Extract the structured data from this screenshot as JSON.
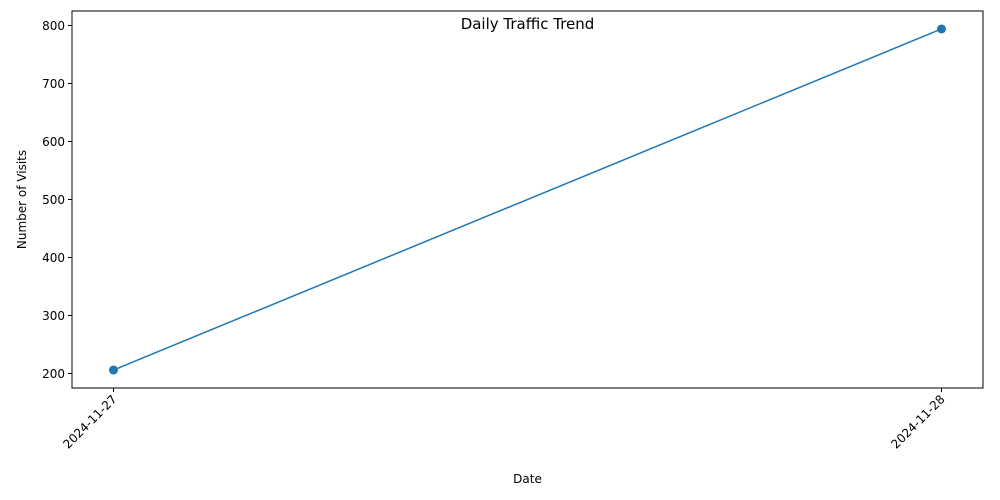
{
  "chart_data": {
    "type": "line",
    "title": "Daily Traffic Trend",
    "xlabel": "Date",
    "ylabel": "Number of Visits",
    "x": [
      "2024-11-27",
      "2024-11-28"
    ],
    "series": [
      {
        "values": [
          206,
          794
        ],
        "color": "#1f77b4",
        "marker": "circle"
      }
    ],
    "ylim": [
      175,
      825
    ],
    "yticks": [
      200,
      300,
      400,
      500,
      600,
      700,
      800
    ],
    "xtick_rotation": 45,
    "grid": false,
    "legend": "none"
  }
}
